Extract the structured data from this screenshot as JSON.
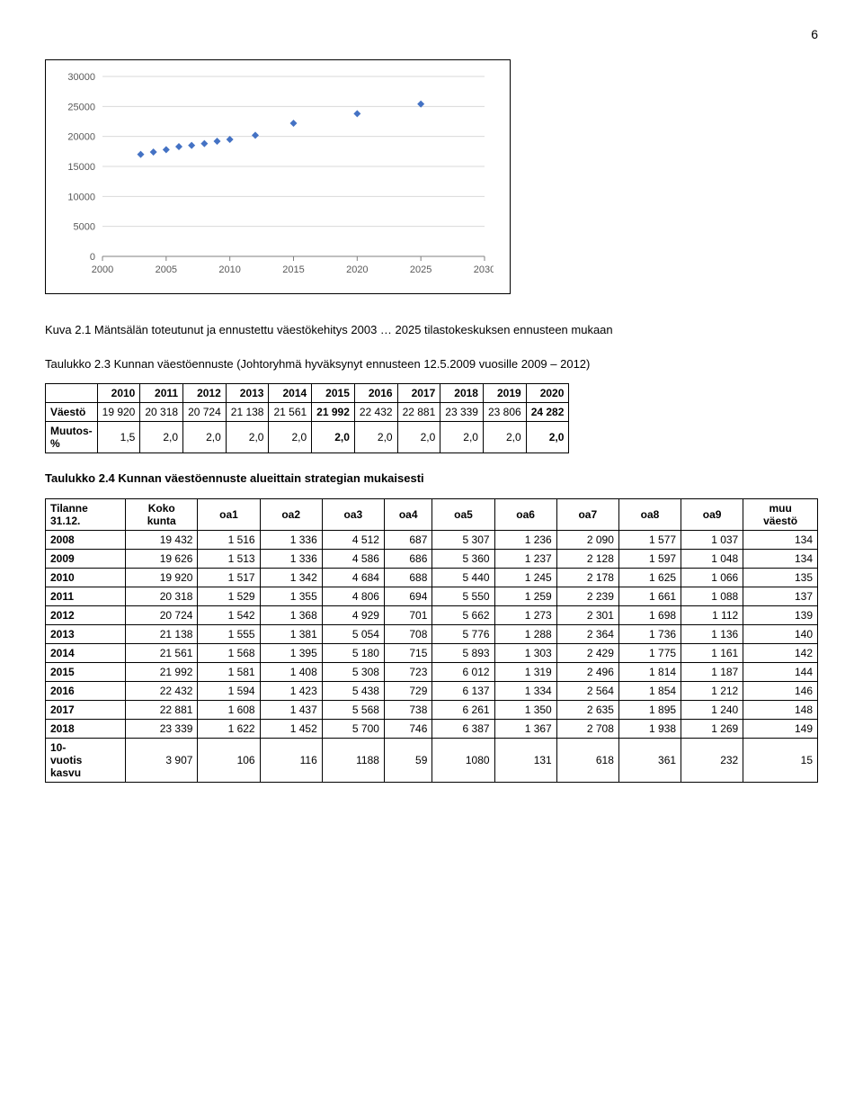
{
  "page_number": "6",
  "chart": {
    "type": "scatter",
    "xlim": [
      2000,
      2030
    ],
    "ylim": [
      0,
      30000
    ],
    "xticks": [
      2000,
      2005,
      2010,
      2015,
      2020,
      2025,
      2030
    ],
    "yticks": [
      0,
      5000,
      10000,
      15000,
      20000,
      25000,
      30000
    ],
    "grid_color": "#d9d9d9",
    "border_color": "#808080",
    "background_color": "#ffffff",
    "marker_color": "#4472c4",
    "marker_shape": "diamond",
    "marker_size": 8,
    "axis_label_fontsize": 11,
    "axis_label_color": "#595959",
    "points": [
      {
        "x": 2003,
        "y": 17000
      },
      {
        "x": 2004,
        "y": 17400
      },
      {
        "x": 2005,
        "y": 17800
      },
      {
        "x": 2006,
        "y": 18300
      },
      {
        "x": 2007,
        "y": 18500
      },
      {
        "x": 2008,
        "y": 18800
      },
      {
        "x": 2009,
        "y": 19200
      },
      {
        "x": 2010,
        "y": 19500
      },
      {
        "x": 2012,
        "y": 20200
      },
      {
        "x": 2015,
        "y": 22200
      },
      {
        "x": 2020,
        "y": 23800
      },
      {
        "x": 2025,
        "y": 25400
      }
    ]
  },
  "caption1_a": "Kuva 2.1 Mäntsälän toteutunut ja ennustettu väestökehitys 2003 … 2025 tilastokeskuksen ennusteen mukaan",
  "caption2_a": "Taulukko 2.3 Kunnan väestöennuste (Johtoryhmä hyväksynyt ennusteen 12.5.2009 vuosille 2009 – 2012)",
  "table1": {
    "years": [
      "2010",
      "2011",
      "2012",
      "2013",
      "2014",
      "2015",
      "2016",
      "2017",
      "2018",
      "2019",
      "2020"
    ],
    "row1_label": "Väestö",
    "row1": [
      "19 920",
      "20 318",
      "20 724",
      "21 138",
      "21 561",
      "21 992",
      "22 432",
      "22 881",
      "23 339",
      "23 806",
      "24 282"
    ],
    "row2_label": "Muutos-\n%",
    "row2": [
      "1,5",
      "2,0",
      "2,0",
      "2,0",
      "2,0",
      "2,0",
      "2,0",
      "2,0",
      "2,0",
      "2,0",
      "2,0"
    ],
    "bold_cols": [
      5,
      10
    ]
  },
  "caption3": "Taulukko 2.4 Kunnan väestöennuste alueittain strategian mukaisesti",
  "table2": {
    "head": [
      "Tilanne\n31.12.",
      "Koko\nkunta",
      "oa1",
      "oa2",
      "oa3",
      "oa4",
      "oa5",
      "oa6",
      "oa7",
      "oa8",
      "oa9",
      "muu\nväestö"
    ],
    "rows": [
      [
        "2008",
        "19 432",
        "1 516",
        "1 336",
        "4 512",
        "687",
        "5 307",
        "1 236",
        "2 090",
        "1 577",
        "1 037",
        "134"
      ],
      [
        "2009",
        "19 626",
        "1 513",
        "1 336",
        "4 586",
        "686",
        "5 360",
        "1 237",
        "2 128",
        "1 597",
        "1 048",
        "134"
      ],
      [
        "2010",
        "19 920",
        "1 517",
        "1 342",
        "4 684",
        "688",
        "5 440",
        "1 245",
        "2 178",
        "1 625",
        "1 066",
        "135"
      ],
      [
        "2011",
        "20 318",
        "1 529",
        "1 355",
        "4 806",
        "694",
        "5 550",
        "1 259",
        "2 239",
        "1 661",
        "1 088",
        "137"
      ],
      [
        "2012",
        "20 724",
        "1 542",
        "1 368",
        "4 929",
        "701",
        "5 662",
        "1 273",
        "2 301",
        "1 698",
        "1 112",
        "139"
      ],
      [
        "2013",
        "21 138",
        "1 555",
        "1 381",
        "5 054",
        "708",
        "5 776",
        "1 288",
        "2 364",
        "1 736",
        "1 136",
        "140"
      ],
      [
        "2014",
        "21 561",
        "1 568",
        "1 395",
        "5 180",
        "715",
        "5 893",
        "1 303",
        "2 429",
        "1 775",
        "1 161",
        "142"
      ],
      [
        "2015",
        "21 992",
        "1 581",
        "1 408",
        "5 308",
        "723",
        "6 012",
        "1 319",
        "2 496",
        "1 814",
        "1 187",
        "144"
      ],
      [
        "2016",
        "22 432",
        "1 594",
        "1 423",
        "5 438",
        "729",
        "6 137",
        "1 334",
        "2 564",
        "1 854",
        "1 212",
        "146"
      ],
      [
        "2017",
        "22 881",
        "1 608",
        "1 437",
        "5 568",
        "738",
        "6 261",
        "1 350",
        "2 635",
        "1 895",
        "1 240",
        "148"
      ],
      [
        "2018",
        "23 339",
        "1 622",
        "1 452",
        "5 700",
        "746",
        "6 387",
        "1 367",
        "2 708",
        "1 938",
        "1 269",
        "149"
      ],
      [
        "10-\nvuotis\nkasvu",
        "3 907",
        "106",
        "116",
        "1188",
        "59",
        "1080",
        "131",
        "618",
        "361",
        "232",
        "15"
      ]
    ]
  }
}
